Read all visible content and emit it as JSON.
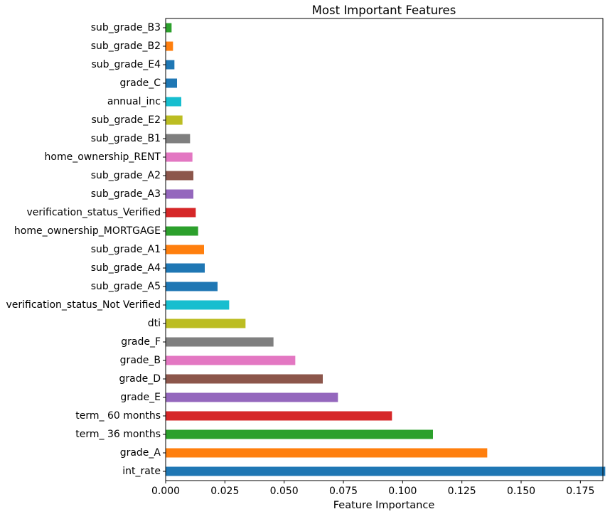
{
  "chart_data": {
    "type": "bar",
    "orientation": "horizontal",
    "title": "Most Important Features",
    "xlabel": "Feature Importance",
    "ylabel": "",
    "xlim": [
      0,
      0.1845
    ],
    "xticks": [
      "0.000",
      "0.025",
      "0.050",
      "0.075",
      "0.100",
      "0.125",
      "0.150",
      "0.175"
    ],
    "grid": false,
    "legend": "none",
    "categories": [
      "int_rate",
      "grade_A",
      "term_ 36 months",
      "term_ 60 months",
      "grade_E",
      "grade_D",
      "grade_B",
      "grade_F",
      "dti",
      "verification_status_Not Verified",
      "sub_grade_A5",
      "sub_grade_A4",
      "sub_grade_A1",
      "home_ownership_MORTGAGE",
      "verification_status_Verified",
      "sub_grade_A3",
      "sub_grade_A2",
      "home_ownership_RENT",
      "sub_grade_B1",
      "sub_grade_E2",
      "annual_inc",
      "grade_C",
      "sub_grade_E4",
      "sub_grade_B2",
      "sub_grade_B3"
    ],
    "values": [
      0.1855,
      0.1357,
      0.1128,
      0.0955,
      0.0727,
      0.0663,
      0.0547,
      0.0455,
      0.0337,
      0.0268,
      0.0219,
      0.0165,
      0.0162,
      0.0137,
      0.0127,
      0.0117,
      0.0117,
      0.0113,
      0.0103,
      0.0071,
      0.0066,
      0.0048,
      0.0037,
      0.0031,
      0.0025
    ],
    "colors": [
      "#1f77b4",
      "#ff7f0e",
      "#2ca02c",
      "#d62728",
      "#9467bd",
      "#8c564b",
      "#e377c2",
      "#7f7f7f",
      "#bcbd22",
      "#17becf",
      "#1f77b4",
      "#1f77b4",
      "#ff7f0e",
      "#2ca02c",
      "#d62728",
      "#9467bd",
      "#8c564b",
      "#e377c2",
      "#7f7f7f",
      "#bcbd22",
      "#17becf",
      "#1f77b4",
      "#1f77b4",
      "#ff7f0e",
      "#2ca02c"
    ]
  }
}
